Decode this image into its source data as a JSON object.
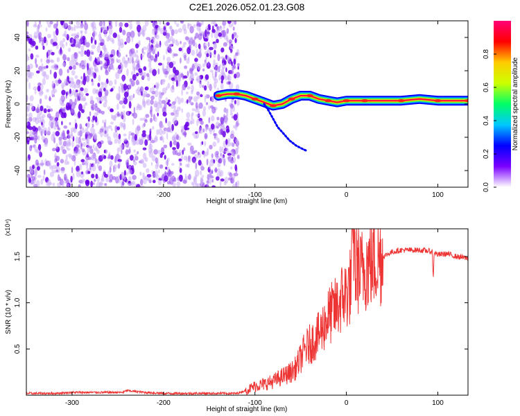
{
  "title": "C2E1.2026.052.01.23.G08",
  "chart_data": [
    {
      "type": "heatmap",
      "xlabel": "Height of straight line (km)",
      "ylabel": "Frequency (Hz)",
      "xlim": [
        -350,
        133
      ],
      "ylim": [
        -50,
        50
      ],
      "xticks": [
        -300,
        -200,
        -100,
        0,
        100
      ],
      "yticks": [
        -40,
        -20,
        0,
        20,
        40
      ],
      "noise_region_x": [
        -350,
        -118
      ],
      "signal_track": {
        "x": [
          -140,
          -130,
          -120,
          -110,
          -100,
          -90,
          -80,
          -70,
          -60,
          -50,
          -40,
          -30,
          -20,
          -10,
          0,
          10,
          20,
          40,
          60,
          80,
          100,
          120,
          133
        ],
        "freq": [
          5,
          6,
          6,
          5,
          3,
          1,
          -1,
          0,
          3,
          5,
          5,
          3,
          2,
          1,
          2,
          2,
          2,
          2,
          2,
          3,
          2,
          2,
          2
        ]
      },
      "secondary_branch": {
        "x": [
          -90,
          -85,
          -80,
          -75,
          -70,
          -62,
          -55,
          -48,
          -44
        ],
        "freq": [
          0,
          -4,
          -9,
          -14,
          -17,
          -22,
          -25,
          -27,
          -28
        ]
      },
      "colorbar": {
        "label": "Normalized spectral amplitude",
        "range": [
          0,
          1
        ],
        "ticks": [
          0.0,
          0.2,
          0.4,
          0.6,
          0.8
        ],
        "colors": [
          "#ffffff",
          "#7b00ff",
          "#0000ff",
          "#00c8ff",
          "#00ff66",
          "#ccff00",
          "#ffcc00",
          "#ff0000",
          "#ff0077"
        ]
      },
      "grid": false,
      "legend": "none"
    },
    {
      "type": "line",
      "xlabel": "Height of straight line (km)",
      "ylabel": "SNR (10 * v/v)",
      "yscale_note": "(x10⁴)",
      "xlim": [
        -350,
        133
      ],
      "ylim": [
        0,
        1.8
      ],
      "xticks": [
        -300,
        -200,
        -100,
        0,
        100
      ],
      "yticks": [
        0.5,
        1.0,
        1.5
      ],
      "series": [
        {
          "color": "#ee3333",
          "x": [
            -350,
            -320,
            -300,
            -280,
            -260,
            -245,
            -240,
            -220,
            -200,
            -180,
            -160,
            -140,
            -120,
            -110,
            -100,
            -90,
            -80,
            -70,
            -60,
            -55,
            -50,
            -45,
            -40,
            -35,
            -30,
            -25,
            -20,
            -15,
            -10,
            -5,
            0,
            5,
            8,
            10,
            12,
            15,
            20,
            30,
            40,
            50,
            60,
            70,
            80,
            90,
            94,
            95,
            96,
            100,
            110,
            120,
            133
          ],
          "values": [
            0.02,
            0.02,
            0.03,
            0.03,
            0.03,
            0.03,
            0.05,
            0.03,
            0.02,
            0.02,
            0.02,
            0.02,
            0.02,
            0.05,
            0.1,
            0.12,
            0.15,
            0.2,
            0.25,
            0.3,
            0.4,
            0.5,
            0.55,
            0.6,
            0.65,
            0.75,
            0.85,
            0.9,
            0.95,
            1.05,
            1.1,
            1.2,
            1.8,
            1.3,
            1.4,
            1.3,
            1.4,
            1.45,
            1.5,
            1.55,
            1.57,
            1.57,
            1.57,
            1.56,
            1.55,
            1.25,
            1.55,
            1.52,
            1.53,
            1.5,
            1.48
          ]
        }
      ],
      "grid": false,
      "legend": "none"
    }
  ]
}
